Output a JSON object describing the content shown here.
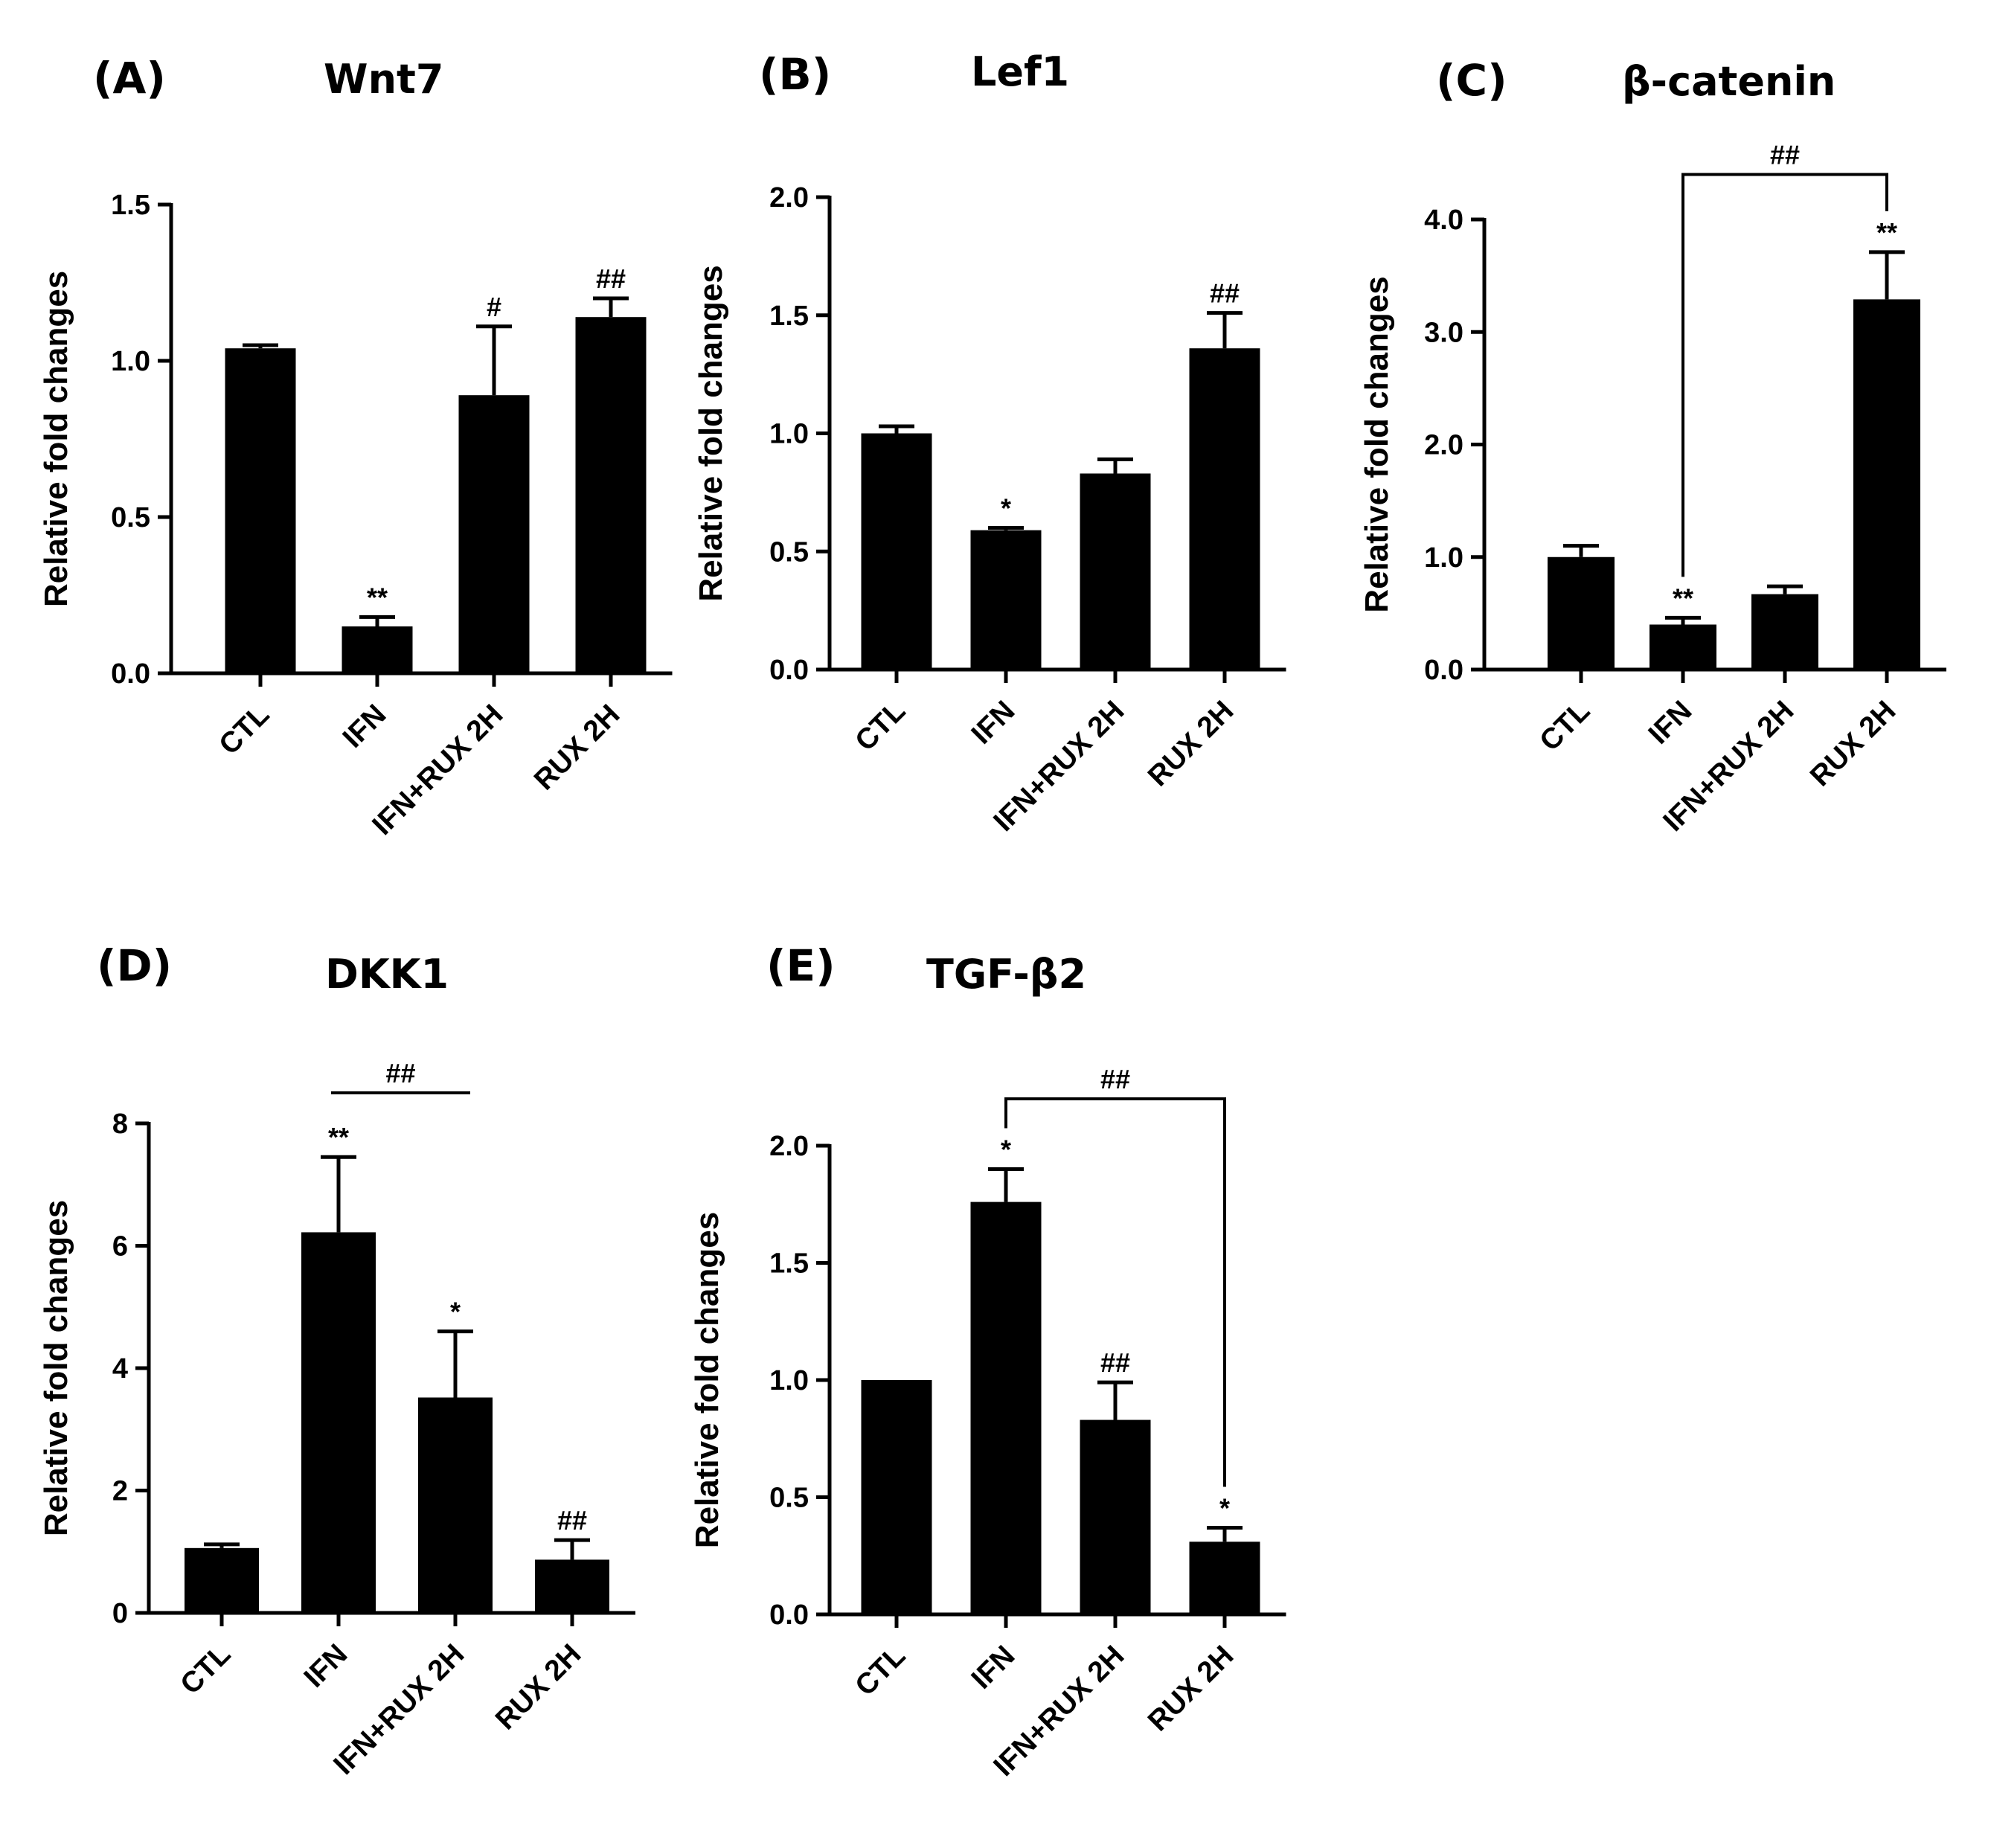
{
  "chart_data": [
    {
      "type": "bar",
      "panel": "(A)",
      "title": "Wnt7",
      "ylabel": "Relative fold changes",
      "xlabel": "",
      "categories": [
        "CTL",
        "IFN",
        "IFN+RUX 2H",
        "RUX 2H"
      ],
      "values": [
        1.04,
        0.15,
        0.89,
        1.14
      ],
      "errors": [
        0.01,
        0.03,
        0.22,
        0.06
      ],
      "annotations": [
        "",
        "**",
        "#",
        "##"
      ],
      "ylim": [
        0,
        1.5
      ],
      "yticks": [
        "0.0",
        "0.5",
        "1.0",
        "1.5"
      ],
      "brackets": []
    },
    {
      "type": "bar",
      "panel": "(B)",
      "title": "Lef1",
      "ylabel": "Relative fold changes",
      "xlabel": "",
      "categories": [
        "CTL",
        "IFN",
        "IFN+RUX 2H",
        "RUX 2H"
      ],
      "values": [
        1.0,
        0.59,
        0.83,
        1.36
      ],
      "errors": [
        0.03,
        0.01,
        0.06,
        0.15
      ],
      "annotations": [
        "",
        "*",
        "",
        "##"
      ],
      "ylim": [
        0,
        2.0
      ],
      "yticks": [
        "0.0",
        "0.5",
        "1.0",
        "1.5",
        "2.0"
      ],
      "brackets": []
    },
    {
      "type": "bar",
      "panel": "(C)",
      "title": "β-catenin",
      "ylabel": "Relative fold changes",
      "xlabel": "",
      "categories": [
        "CTL",
        "IFN",
        "IFN+RUX 2H",
        "RUX 2H"
      ],
      "values": [
        1.0,
        0.4,
        0.67,
        3.29
      ],
      "errors": [
        0.1,
        0.06,
        0.07,
        0.42
      ],
      "annotations": [
        "",
        "**",
        "",
        "**"
      ],
      "ylim": [
        0,
        4.0
      ],
      "yticks": [
        "0.0",
        "1.0",
        "2.0",
        "3.0",
        "4.0"
      ],
      "brackets": [
        {
          "from": 1,
          "to": 3,
          "label": "##",
          "style": "bracket",
          "level": 4.4
        }
      ]
    },
    {
      "type": "bar",
      "panel": "(D)",
      "title": "DKK1",
      "ylabel": "Relative fold changes",
      "xlabel": "",
      "categories": [
        "CTL",
        "IFN",
        "IFN+RUX 2H",
        "RUX 2H"
      ],
      "values": [
        1.06,
        6.22,
        3.52,
        0.87
      ],
      "errors": [
        0.06,
        1.23,
        1.08,
        0.32
      ],
      "annotations": [
        "",
        "**",
        "*",
        "##"
      ],
      "ylim": [
        0,
        8
      ],
      "yticks": [
        "0",
        "2",
        "4",
        "6",
        "8"
      ],
      "brackets": [
        {
          "from": 1,
          "to": 2,
          "label": "##",
          "style": "line",
          "level": 8.5
        }
      ]
    },
    {
      "type": "bar",
      "panel": "(E)",
      "title": "TGF-β2",
      "ylabel": "Relative fold changes",
      "xlabel": "",
      "categories": [
        "CTL",
        "IFN",
        "IFN+RUX 2H",
        "RUX 2H"
      ],
      "values": [
        1.0,
        1.76,
        0.83,
        0.31
      ],
      "errors": [
        0.0,
        0.14,
        0.16,
        0.06
      ],
      "annotations": [
        "",
        "*",
        "##",
        "*"
      ],
      "ylim": [
        0,
        2.0
      ],
      "yticks": [
        "0.0",
        "0.5",
        "1.0",
        "1.5",
        "2.0"
      ],
      "brackets": [
        {
          "from": 1,
          "to": 3,
          "label": "##",
          "style": "bracket",
          "level": 2.2
        }
      ]
    }
  ]
}
